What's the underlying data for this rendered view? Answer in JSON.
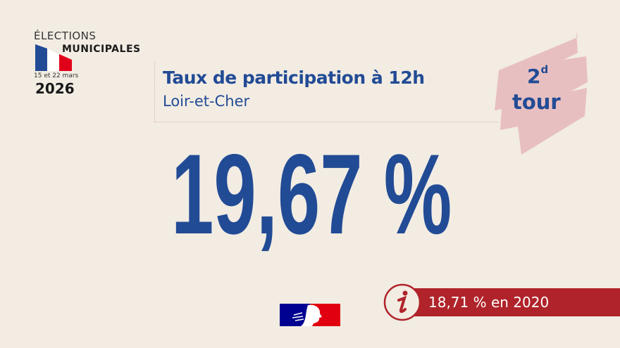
{
  "header": {
    "elections_label": "ÉLECTIONS",
    "municipales_label": "MUNICIPALES",
    "dates": "15 et 22 mars",
    "year": "2026"
  },
  "main": {
    "title": "Taux de participation à 12h",
    "department": "Loir-et-Cher",
    "rate": "19,67 %"
  },
  "badge": {
    "round_number": "2",
    "round_suffix": "d",
    "round_label": "tour"
  },
  "info": {
    "icon": "info-icon",
    "text": "18,71 % en 2020"
  },
  "colors": {
    "background": "#f2ece3",
    "blue": "#224b95",
    "red": "#b0232a",
    "pink": "#e8bfc0"
  }
}
